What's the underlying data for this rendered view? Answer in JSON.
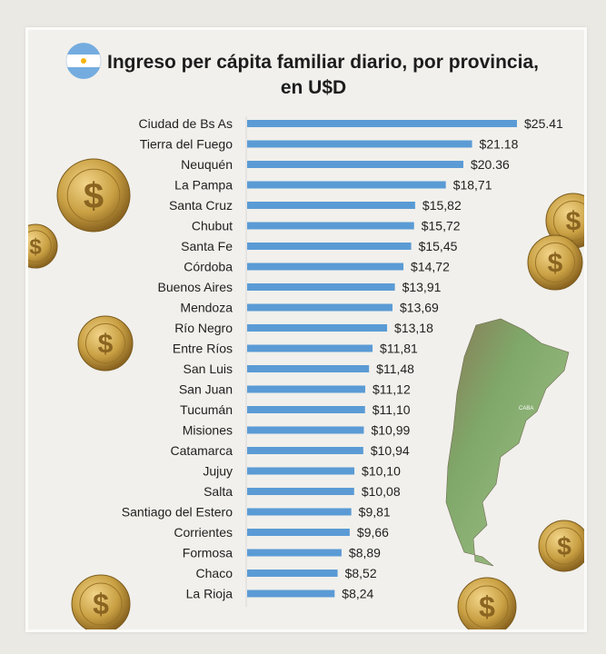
{
  "chart_data": {
    "type": "bar",
    "orientation": "horizontal",
    "title": "Ingreso per cápita familiar diario, por provincia, en U$D",
    "title_lines": [
      "Ingreso per cápita familiar diario, por provincia,",
      "en U$D"
    ],
    "categories": [
      "Ciudad de Bs As",
      "Tierra del Fuego",
      "Neuquén",
      "La Pampa",
      "Santa Cruz",
      "Chubut",
      "Santa Fe",
      "Córdoba",
      "Buenos Aires",
      "Mendoza",
      "Río Negro",
      "Entre Ríos",
      "San Luis",
      "San Juan",
      "Tucumán",
      "Misiones",
      "Catamarca",
      "Jujuy",
      "Salta",
      "Santiago del Estero",
      "Corrientes",
      "Formosa",
      "Chaco",
      "La Rioja"
    ],
    "values": [
      25.41,
      21.18,
      20.36,
      18.71,
      15.82,
      15.72,
      15.45,
      14.72,
      13.91,
      13.69,
      13.18,
      11.81,
      11.48,
      11.12,
      11.1,
      10.99,
      10.94,
      10.1,
      10.08,
      9.81,
      9.66,
      8.89,
      8.52,
      8.24
    ],
    "data_labels": [
      "$25.41",
      "$21.18",
      "$20.36",
      "$18,71",
      "$15,82",
      "$15,72",
      "$15,45",
      "$14,72",
      "$13,91",
      "$13,69",
      "$13,18",
      "$11,81",
      "$11,48",
      "$11,12",
      "$11,10",
      "$10,99",
      "$10,94",
      "$10,10",
      "$10,08",
      "$9,81",
      "$9,66",
      "$8,89",
      "$8,52",
      "$8,24"
    ],
    "xlim": [
      0,
      25.41
    ],
    "grid": false,
    "legend": "none",
    "xlabel": "",
    "ylabel": "",
    "bar_color": "#5b9bd5",
    "map_label": "CABA"
  },
  "decorations": {
    "flag": "argentina-flag-icon",
    "coins": "dollar-coin-icon",
    "map": "argentina-relief-map"
  }
}
